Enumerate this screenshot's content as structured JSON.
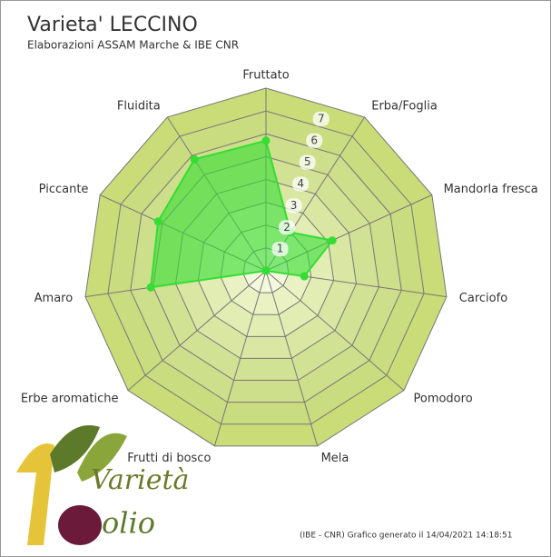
{
  "chart_data": {
    "type": "radar",
    "title": "Varieta' LECCINO",
    "subtitle": "Elaborazioni ASSAM Marche & IBE CNR",
    "footer": "(IBE - CNR) Grafico generato il 14/04/2021 14:18:51",
    "logo": [
      "Varietà",
      "olio"
    ],
    "categories": [
      "Fruttato",
      "Erba/Foglia",
      "Mandorla fresca",
      "Carciofo",
      "Pomodoro",
      "Mela",
      "Frutti di bosco",
      "Erbe aromatiche",
      "Amaro",
      "Piccante",
      "Fluidita"
    ],
    "values": [
      5.7,
      2.0,
      3.2,
      1.7,
      0,
      0,
      0,
      0,
      5.1,
      5.2,
      5.8
    ],
    "color": "#33dd33",
    "ylim": [
      0,
      8
    ],
    "yticks": [
      1,
      2,
      3,
      4,
      5,
      6,
      7
    ],
    "grid": true
  }
}
